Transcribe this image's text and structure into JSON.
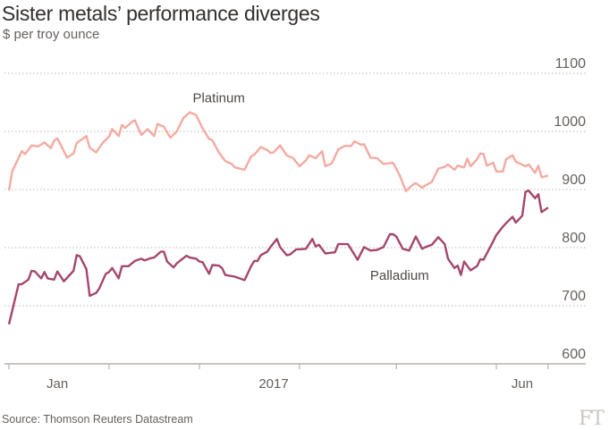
{
  "header": {
    "title": "Sister metals’ performance diverges",
    "subtitle": "$ per troy ounce"
  },
  "footer": {
    "source": "Source: Thomson Reuters Datastream",
    "logo": "FT"
  },
  "chart_data": {
    "type": "line",
    "title": "Sister metals’ performance diverges",
    "subtitle": "$ per troy ounce",
    "ylim": [
      600,
      1100
    ],
    "yticks": [
      600,
      700,
      800,
      900,
      1000,
      1100
    ],
    "y_axis_side": "right",
    "grid": "horizontal dotted",
    "xlim": [
      "2017-01-01",
      "2017-06-17"
    ],
    "xtick_marks": [
      "2017-01-01",
      "2017-02-01",
      "2017-03-01",
      "2017-04-01",
      "2017-05-01",
      "2017-06-01",
      "2017-06-17"
    ],
    "xtick_labels": [
      {
        "label": "Jan",
        "at": "2017-01-16"
      },
      {
        "label": "2017",
        "at": "2017-03-24"
      },
      {
        "label": "Jun",
        "at": "2017-06-09"
      }
    ],
    "colors": {
      "Platinum": "#f4aaa1",
      "Palladium": "#a5466c"
    },
    "series": [
      {
        "name": "Platinum",
        "label_at": [
          "2017-03-07",
          1050
        ],
        "values": [
          [
            "2017-01-01",
            898
          ],
          [
            "2017-01-02",
            931
          ],
          [
            "2017-01-05",
            966
          ],
          [
            "2017-01-06",
            961
          ],
          [
            "2017-01-08",
            976
          ],
          [
            "2017-01-10",
            974
          ],
          [
            "2017-01-12",
            981
          ],
          [
            "2017-01-14",
            971
          ],
          [
            "2017-01-15",
            984
          ],
          [
            "2017-01-16",
            988
          ],
          [
            "2017-01-18",
            966
          ],
          [
            "2017-01-19",
            955
          ],
          [
            "2017-01-21",
            962
          ],
          [
            "2017-01-22",
            980
          ],
          [
            "2017-01-25",
            992
          ],
          [
            "2017-01-26",
            972
          ],
          [
            "2017-01-28",
            964
          ],
          [
            "2017-01-30",
            980
          ],
          [
            "2017-02-01",
            991
          ],
          [
            "2017-02-02",
            1004
          ],
          [
            "2017-02-04",
            992
          ],
          [
            "2017-02-05",
            1011
          ],
          [
            "2017-02-06",
            1006
          ],
          [
            "2017-02-08",
            1016
          ],
          [
            "2017-02-09",
            1019
          ],
          [
            "2017-02-11",
            994
          ],
          [
            "2017-02-13",
            1004
          ],
          [
            "2017-02-15",
            992
          ],
          [
            "2017-02-16",
            1013
          ],
          [
            "2017-02-18",
            1008
          ],
          [
            "2017-02-20",
            989
          ],
          [
            "2017-02-22",
            1000
          ],
          [
            "2017-02-24",
            1023
          ],
          [
            "2017-02-26",
            1033
          ],
          [
            "2017-02-28",
            1028
          ],
          [
            "2017-03-02",
            1005
          ],
          [
            "2017-03-04",
            987
          ],
          [
            "2017-03-05",
            985
          ],
          [
            "2017-03-07",
            964
          ],
          [
            "2017-03-09",
            949
          ],
          [
            "2017-03-11",
            944
          ],
          [
            "2017-03-12",
            938
          ],
          [
            "2017-03-15",
            934
          ],
          [
            "2017-03-17",
            957
          ],
          [
            "2017-03-18",
            960
          ],
          [
            "2017-03-20",
            973
          ],
          [
            "2017-03-22",
            968
          ],
          [
            "2017-03-23",
            963
          ],
          [
            "2017-03-24",
            964
          ],
          [
            "2017-03-26",
            976
          ],
          [
            "2017-03-28",
            959
          ],
          [
            "2017-03-30",
            954
          ],
          [
            "2017-04-01",
            940
          ],
          [
            "2017-04-03",
            950
          ],
          [
            "2017-04-04",
            959
          ],
          [
            "2017-04-06",
            954
          ],
          [
            "2017-04-08",
            966
          ],
          [
            "2017-04-09",
            940
          ],
          [
            "2017-04-11",
            945
          ],
          [
            "2017-04-13",
            969
          ],
          [
            "2017-04-15",
            975
          ],
          [
            "2017-04-17",
            975
          ],
          [
            "2017-04-18",
            983
          ],
          [
            "2017-04-20",
            977
          ],
          [
            "2017-04-21",
            978
          ],
          [
            "2017-04-23",
            955
          ],
          [
            "2017-04-25",
            954
          ],
          [
            "2017-04-27",
            944
          ],
          [
            "2017-04-30",
            946
          ],
          [
            "2017-05-02",
            925
          ],
          [
            "2017-05-04",
            897
          ],
          [
            "2017-05-06",
            908
          ],
          [
            "2017-05-07",
            911
          ],
          [
            "2017-05-09",
            903
          ],
          [
            "2017-05-10",
            907
          ],
          [
            "2017-05-12",
            913
          ],
          [
            "2017-05-14",
            936
          ],
          [
            "2017-05-16",
            939
          ],
          [
            "2017-05-17",
            943
          ],
          [
            "2017-05-19",
            934
          ],
          [
            "2017-05-20",
            941
          ],
          [
            "2017-05-22",
            938
          ],
          [
            "2017-05-23",
            953
          ],
          [
            "2017-05-24",
            940
          ],
          [
            "2017-05-26",
            952
          ],
          [
            "2017-05-27",
            962
          ],
          [
            "2017-05-28",
            961
          ],
          [
            "2017-05-29",
            941
          ],
          [
            "2017-05-31",
            946
          ],
          [
            "2017-06-01",
            931
          ],
          [
            "2017-06-03",
            931
          ],
          [
            "2017-06-04",
            952
          ],
          [
            "2017-06-06",
            959
          ],
          [
            "2017-06-07",
            948
          ],
          [
            "2017-06-10",
            940
          ],
          [
            "2017-06-11",
            943
          ],
          [
            "2017-06-13",
            929
          ],
          [
            "2017-06-14",
            941
          ],
          [
            "2017-06-15",
            921
          ],
          [
            "2017-06-17",
            924
          ]
        ]
      },
      {
        "name": "Palladium",
        "label_at": [
          "2017-05-02",
          745
        ],
        "values": [
          [
            "2017-01-01",
            668
          ],
          [
            "2017-01-04",
            737
          ],
          [
            "2017-01-05",
            737
          ],
          [
            "2017-01-07",
            745
          ],
          [
            "2017-01-08",
            760
          ],
          [
            "2017-01-09",
            759
          ],
          [
            "2017-01-11",
            747
          ],
          [
            "2017-01-12",
            758
          ],
          [
            "2017-01-13",
            747
          ],
          [
            "2017-01-15",
            745
          ],
          [
            "2017-01-16",
            759
          ],
          [
            "2017-01-18",
            742
          ],
          [
            "2017-01-21",
            760
          ],
          [
            "2017-01-22",
            787
          ],
          [
            "2017-01-23",
            785
          ],
          [
            "2017-01-25",
            763
          ],
          [
            "2017-01-26",
            717
          ],
          [
            "2017-01-28",
            722
          ],
          [
            "2017-01-29",
            730
          ],
          [
            "2017-01-31",
            755
          ],
          [
            "2017-02-01",
            758
          ],
          [
            "2017-02-02",
            765
          ],
          [
            "2017-02-04",
            747
          ],
          [
            "2017-02-05",
            768
          ],
          [
            "2017-02-07",
            768
          ],
          [
            "2017-02-09",
            777
          ],
          [
            "2017-02-11",
            781
          ],
          [
            "2017-02-12",
            778
          ],
          [
            "2017-02-14",
            782
          ],
          [
            "2017-02-15",
            783
          ],
          [
            "2017-02-17",
            793
          ],
          [
            "2017-02-18",
            793
          ],
          [
            "2017-02-19",
            776
          ],
          [
            "2017-02-21",
            766
          ],
          [
            "2017-02-22",
            773
          ],
          [
            "2017-02-25",
            786
          ],
          [
            "2017-02-26",
            783
          ],
          [
            "2017-02-28",
            781
          ],
          [
            "2017-03-01",
            776
          ],
          [
            "2017-03-02",
            775
          ],
          [
            "2017-03-04",
            755
          ],
          [
            "2017-03-05",
            770
          ],
          [
            "2017-03-07",
            769
          ],
          [
            "2017-03-08",
            765
          ],
          [
            "2017-03-09",
            753
          ],
          [
            "2017-03-12",
            750
          ],
          [
            "2017-03-15",
            744
          ],
          [
            "2017-03-17",
            768
          ],
          [
            "2017-03-18",
            777
          ],
          [
            "2017-03-19",
            777
          ],
          [
            "2017-03-20",
            787
          ],
          [
            "2017-03-22",
            793
          ],
          [
            "2017-03-23",
            801
          ],
          [
            "2017-03-25",
            815
          ],
          [
            "2017-03-26",
            801
          ],
          [
            "2017-03-28",
            787
          ],
          [
            "2017-03-29",
            788
          ],
          [
            "2017-03-31",
            797
          ],
          [
            "2017-04-01",
            797
          ],
          [
            "2017-04-03",
            798
          ],
          [
            "2017-04-05",
            815
          ],
          [
            "2017-04-06",
            802
          ],
          [
            "2017-04-07",
            805
          ],
          [
            "2017-04-09",
            790
          ],
          [
            "2017-04-12",
            792
          ],
          [
            "2017-04-13",
            806
          ],
          [
            "2017-04-16",
            806
          ],
          [
            "2017-04-18",
            788
          ],
          [
            "2017-04-19",
            779
          ],
          [
            "2017-04-21",
            801
          ],
          [
            "2017-04-23",
            795
          ],
          [
            "2017-04-25",
            796
          ],
          [
            "2017-04-27",
            801
          ],
          [
            "2017-04-29",
            823
          ],
          [
            "2017-04-30",
            823
          ],
          [
            "2017-05-01",
            819
          ],
          [
            "2017-05-03",
            798
          ],
          [
            "2017-05-05",
            795
          ],
          [
            "2017-05-07",
            819
          ],
          [
            "2017-05-09",
            798
          ],
          [
            "2017-05-10",
            801
          ],
          [
            "2017-05-12",
            805
          ],
          [
            "2017-05-14",
            818
          ],
          [
            "2017-05-16",
            806
          ],
          [
            "2017-05-17",
            781
          ],
          [
            "2017-05-19",
            765
          ],
          [
            "2017-05-20",
            769
          ],
          [
            "2017-05-21",
            753
          ],
          [
            "2017-05-22",
            776
          ],
          [
            "2017-05-24",
            761
          ],
          [
            "2017-05-26",
            768
          ],
          [
            "2017-05-27",
            780
          ],
          [
            "2017-05-28",
            779
          ],
          [
            "2017-05-31",
            811
          ],
          [
            "2017-06-01",
            822
          ],
          [
            "2017-06-03",
            836
          ],
          [
            "2017-06-04",
            842
          ],
          [
            "2017-06-06",
            853
          ],
          [
            "2017-06-07",
            843
          ],
          [
            "2017-06-09",
            855
          ],
          [
            "2017-06-10",
            896
          ],
          [
            "2017-06-11",
            898
          ],
          [
            "2017-06-13",
            885
          ],
          [
            "2017-06-14",
            892
          ],
          [
            "2017-06-15",
            861
          ],
          [
            "2017-06-17",
            869
          ]
        ]
      }
    ]
  }
}
